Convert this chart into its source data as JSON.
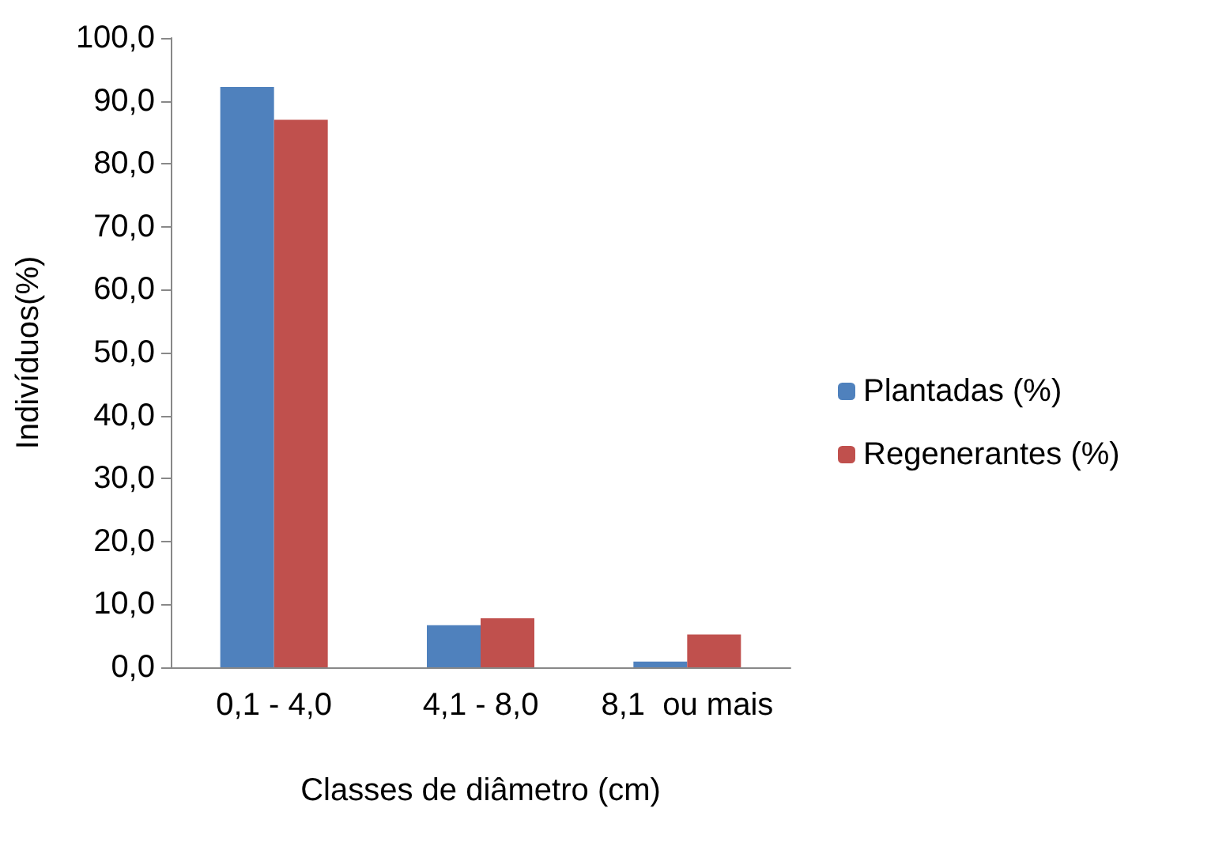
{
  "chart_data": {
    "type": "bar",
    "xlabel": "Classes de diâmetro (cm)",
    "ylabel": "Indivíduos(%)",
    "categories": [
      "0,1 - 4,0",
      "4,1 - 8,0",
      "8,1  ou mais"
    ],
    "series": [
      {
        "name": "Plantadas (%)",
        "color": "#4f81bd",
        "values": [
          92.2,
          6.7,
          0.9
        ]
      },
      {
        "name": "Regenerantes (%)",
        "color": "#c0504d",
        "values": [
          87.0,
          7.8,
          5.2
        ]
      }
    ],
    "ylim": [
      0,
      100
    ],
    "yticks": [
      {
        "value": 0,
        "label": "0,0"
      },
      {
        "value": 10,
        "label": "10,0"
      },
      {
        "value": 20,
        "label": "20,0"
      },
      {
        "value": 30,
        "label": "30,0"
      },
      {
        "value": 40,
        "label": "40,0"
      },
      {
        "value": 50,
        "label": "50,0"
      },
      {
        "value": 60,
        "label": "60,0"
      },
      {
        "value": 70,
        "label": "70,0"
      },
      {
        "value": 80,
        "label": "80,0"
      },
      {
        "value": 90,
        "label": "90,0"
      },
      {
        "value": 100,
        "label": "100,0"
      }
    ],
    "grid": false,
    "legend": "right"
  }
}
